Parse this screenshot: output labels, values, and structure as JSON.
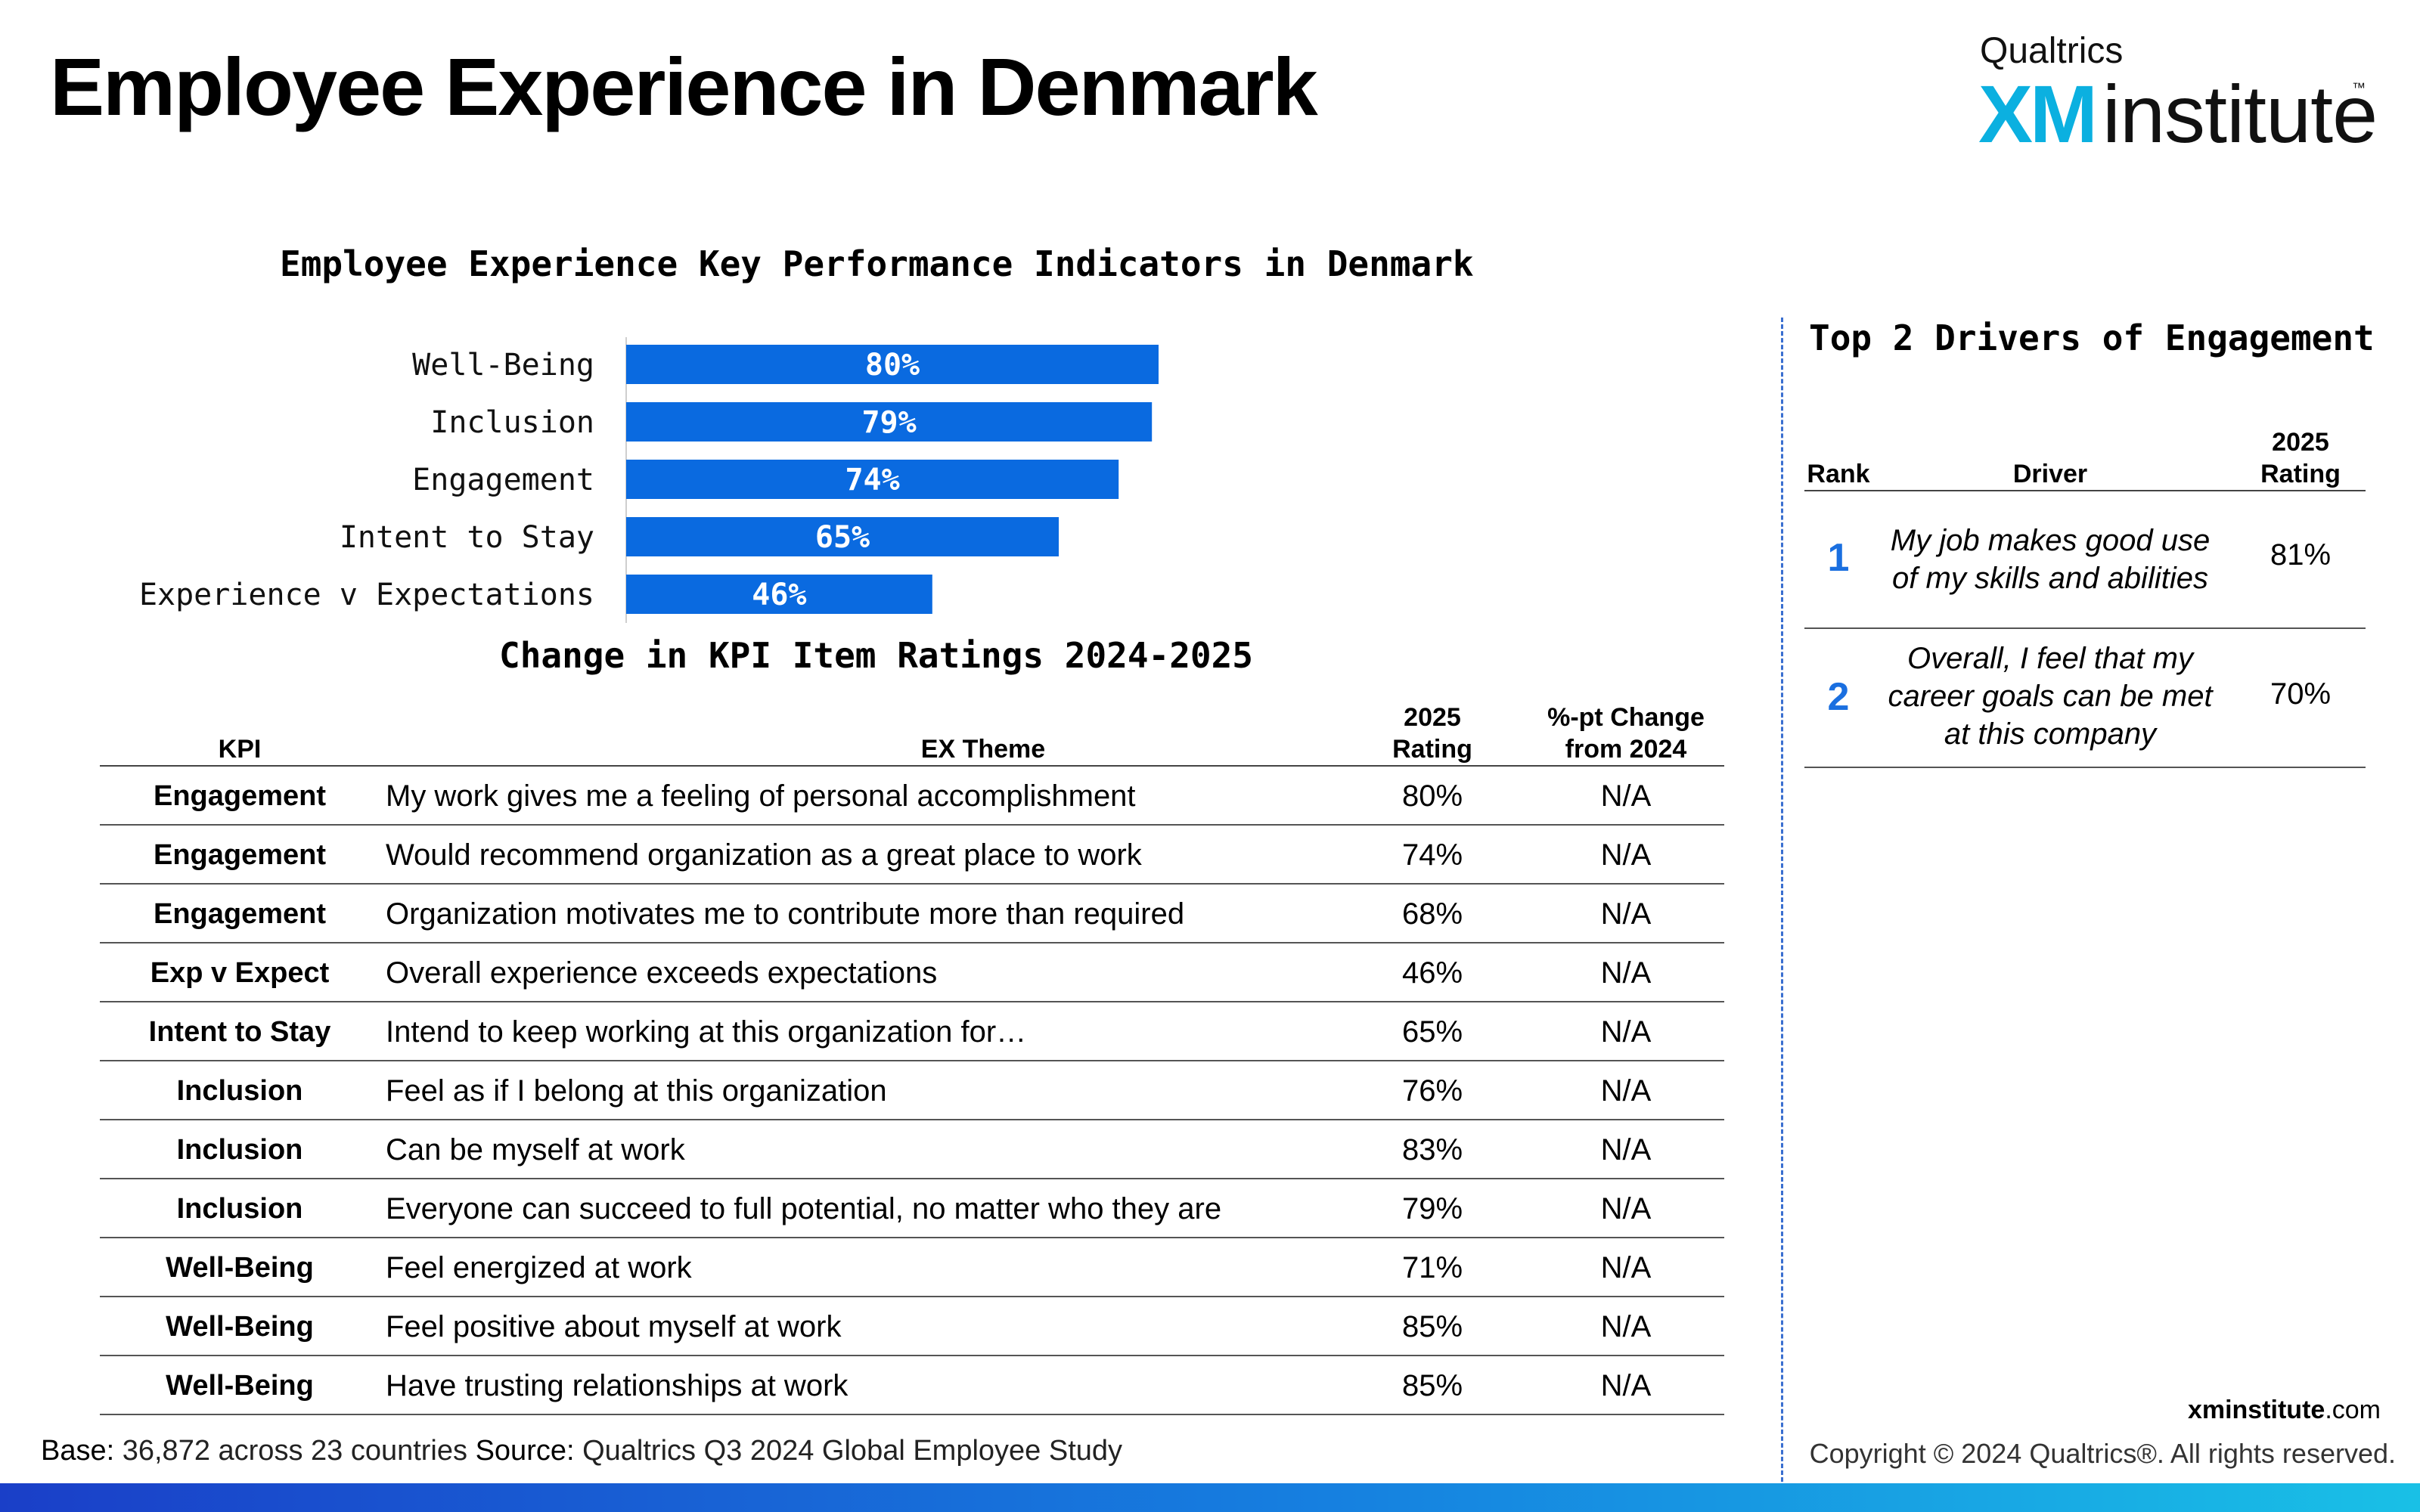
{
  "page": {
    "title": "Employee Experience in Denmark",
    "logo": {
      "brand": "Qualtrics",
      "xm": "XM",
      "institute": "institute",
      "tm": "™"
    }
  },
  "chart_data": [
    {
      "type": "bar",
      "orientation": "horizontal",
      "title": "Employee Experience Key Performance Indicators in Denmark",
      "categories": [
        "Well-Being",
        "Inclusion",
        "Engagement",
        "Intent to Stay",
        "Experience v Expectations"
      ],
      "values": [
        80,
        79,
        74,
        65,
        46
      ],
      "value_labels": [
        "80%",
        "79%",
        "74%",
        "65%",
        "46%"
      ],
      "xlim": [
        0,
        100
      ],
      "bar_color": "#0a6ae0",
      "label_color": "#ffffff"
    }
  ],
  "kpi_table": {
    "title": "Change in KPI Item Ratings 2024-2025",
    "headers": {
      "kpi": "KPI",
      "theme": "EX Theme",
      "rating": "2025\nRating",
      "change": "%-pt Change\nfrom 2024"
    },
    "rows": [
      {
        "kpi": "Engagement",
        "theme": "My work gives me a feeling of personal accomplishment",
        "rating": "80%",
        "change": "N/A"
      },
      {
        "kpi": "Engagement",
        "theme": "Would recommend organization as a great place to work",
        "rating": "74%",
        "change": "N/A"
      },
      {
        "kpi": "Engagement",
        "theme": "Organization motivates me to contribute more than required",
        "rating": "68%",
        "change": "N/A"
      },
      {
        "kpi": "Exp v Expect",
        "theme": "Overall experience exceeds expectations",
        "rating": "46%",
        "change": "N/A"
      },
      {
        "kpi": "Intent to Stay",
        "theme": "Intend to keep working at this organization for…",
        "rating": "65%",
        "change": "N/A"
      },
      {
        "kpi": "Inclusion",
        "theme": "Feel as if I belong at this organization",
        "rating": "76%",
        "change": "N/A"
      },
      {
        "kpi": "Inclusion",
        "theme": "Can be myself at work",
        "rating": "83%",
        "change": "N/A"
      },
      {
        "kpi": "Inclusion",
        "theme": "Everyone can succeed to full potential, no matter who they are",
        "rating": "79%",
        "change": "N/A"
      },
      {
        "kpi": "Well-Being",
        "theme": "Feel energized at work",
        "rating": "71%",
        "change": "N/A"
      },
      {
        "kpi": "Well-Being",
        "theme": "Feel positive about myself at work",
        "rating": "85%",
        "change": "N/A"
      },
      {
        "kpi": "Well-Being",
        "theme": "Have trusting relationships at work",
        "rating": "85%",
        "change": "N/A"
      }
    ]
  },
  "drivers": {
    "title": "Top 2 Drivers of Engagement",
    "headers": {
      "rank": "Rank",
      "driver": "Driver",
      "rating": "2025\nRating"
    },
    "rows": [
      {
        "rank": "1",
        "driver": "My job makes good use\nof my skills and abilities",
        "rating": "81%"
      },
      {
        "rank": "2",
        "driver": "Overall, I feel that my\ncareer goals can be met\nat this company",
        "rating": "70%"
      }
    ]
  },
  "footer": {
    "base_label": "Base:",
    "base_value": "36,872 across 23 countries",
    "source_label": "Source:",
    "source_value": "Qualtrics Q3 2024 Global Employee Study",
    "site_bold": "xminstitute",
    "site_rest": ".com",
    "copyright": "Copyright © 2024 Qualtrics®. All rights reserved."
  }
}
